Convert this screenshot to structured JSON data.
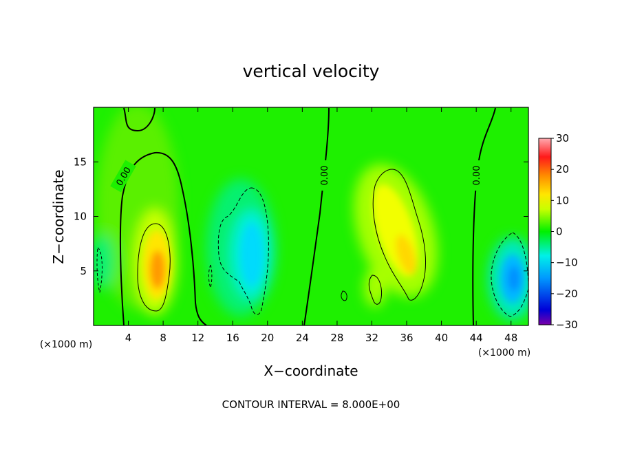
{
  "chart_data": {
    "type": "heatmap",
    "title": "vertical velocity",
    "xlabel": "X−coordinate",
    "ylabel": "Z−coordinate",
    "x_unit_left": "(×1000 m)",
    "x_unit_right": "(×1000 m)",
    "xlim": [
      0,
      50
    ],
    "ylim": [
      0,
      20
    ],
    "xticks": [
      4,
      8,
      12,
      16,
      20,
      24,
      28,
      32,
      36,
      40,
      44,
      48
    ],
    "xtick_labels": [
      "4",
      "8",
      "12",
      "16",
      "20",
      "24",
      "28",
      "32",
      "36",
      "40",
      "44",
      "48"
    ],
    "yticks": [
      5,
      10,
      15
    ],
    "ytick_labels": [
      "5",
      "10",
      "15"
    ],
    "colorbar": {
      "range": [
        -30,
        30
      ],
      "ticks": [
        30,
        20,
        10,
        0,
        -10,
        -20,
        -30
      ],
      "tick_labels": [
        "30",
        "20",
        "10",
        "0",
        "−10",
        "−20",
        "−30"
      ]
    },
    "contour_interval_text": "CONTOUR INTERVAL = 8.000E+00",
    "contour_levels": [
      -8,
      0,
      8
    ],
    "contour_labels": [
      "0.00",
      "0.00",
      "0.00"
    ],
    "features": [
      {
        "kind": "updraft",
        "x": 7.5,
        "z": 5.5,
        "peak": 15
      },
      {
        "kind": "downdraft",
        "x": 18,
        "z": 7.5,
        "peak": -10
      },
      {
        "kind": "updraft",
        "x": 34.5,
        "z": 8.5,
        "peak": 11
      },
      {
        "kind": "updraft",
        "x": 31.5,
        "z": 3.5,
        "peak": 9
      },
      {
        "kind": "downdraft",
        "x": 48.5,
        "z": 4.5,
        "peak": -13
      },
      {
        "kind": "downdraft",
        "x": 0.5,
        "z": 5.5,
        "peak": -6
      }
    ]
  }
}
